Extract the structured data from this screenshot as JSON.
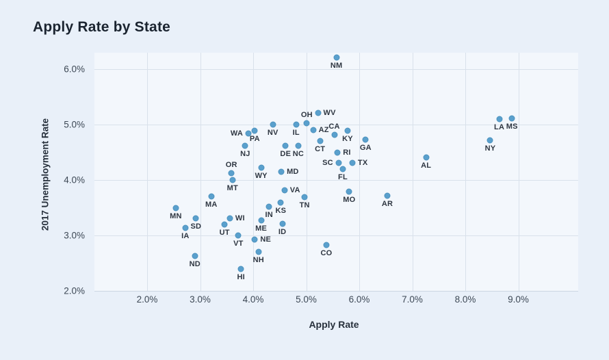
{
  "page": {
    "title": "Apply Rate by State"
  },
  "chart_data": {
    "type": "scatter",
    "title": "Apply Rate by State",
    "xlabel": "Apply Rate",
    "ylabel": "2017 Unemployment Rate",
    "xlim": [
      1.0,
      10.1
    ],
    "ylim": [
      2.0,
      6.3
    ],
    "grid": true,
    "legend": "none",
    "point_color": "#5aa0cd",
    "x_ticks": [
      {
        "value": 2.0,
        "label": "2.0%"
      },
      {
        "value": 3.0,
        "label": "3.0%"
      },
      {
        "value": 4.0,
        "label": "4.0%"
      },
      {
        "value": 5.0,
        "label": "5.0%"
      },
      {
        "value": 6.0,
        "label": "6.0%"
      },
      {
        "value": 7.0,
        "label": "7.0%"
      },
      {
        "value": 8.0,
        "label": "8.0%"
      },
      {
        "value": 9.0,
        "label": "9.0%"
      }
    ],
    "y_ticks": [
      {
        "value": 2.0,
        "label": "2.0%"
      },
      {
        "value": 3.0,
        "label": "3.0%"
      },
      {
        "value": 4.0,
        "label": "4.0%"
      },
      {
        "value": 5.0,
        "label": "5.0%"
      },
      {
        "value": 6.0,
        "label": "6.0%"
      }
    ],
    "points": [
      {
        "state": "NM",
        "x": 5.57,
        "y": 6.2,
        "label_pos": "below"
      },
      {
        "state": "WV",
        "x": 5.22,
        "y": 5.2,
        "label_pos": "right"
      },
      {
        "state": "OH",
        "x": 5.01,
        "y": 5.02,
        "label_pos": "above"
      },
      {
        "state": "IL",
        "x": 4.81,
        "y": 5.0,
        "label_pos": "below"
      },
      {
        "state": "NV",
        "x": 4.37,
        "y": 5.0,
        "label_pos": "below"
      },
      {
        "state": "PA",
        "x": 4.03,
        "y": 4.88,
        "label_pos": "below"
      },
      {
        "state": "WA",
        "x": 3.91,
        "y": 4.83,
        "label_pos": "left"
      },
      {
        "state": "AZ",
        "x": 5.13,
        "y": 4.9,
        "label_pos": "right"
      },
      {
        "state": "CA",
        "x": 5.53,
        "y": 4.81,
        "label_pos": "above"
      },
      {
        "state": "KY",
        "x": 5.78,
        "y": 4.88,
        "label_pos": "below"
      },
      {
        "state": "NJ",
        "x": 3.85,
        "y": 4.61,
        "label_pos": "below"
      },
      {
        "state": "DE",
        "x": 4.61,
        "y": 4.61,
        "label_pos": "below"
      },
      {
        "state": "NC",
        "x": 4.85,
        "y": 4.61,
        "label_pos": "below"
      },
      {
        "state": "CT",
        "x": 5.26,
        "y": 4.7,
        "label_pos": "below"
      },
      {
        "state": "GA",
        "x": 6.12,
        "y": 4.72,
        "label_pos": "below"
      },
      {
        "state": "RI",
        "x": 5.59,
        "y": 4.49,
        "label_pos": "right"
      },
      {
        "state": "SC",
        "x": 5.61,
        "y": 4.3,
        "label_pos": "left"
      },
      {
        "state": "TX",
        "x": 5.87,
        "y": 4.3,
        "label_pos": "right"
      },
      {
        "state": "FL",
        "x": 5.69,
        "y": 4.19,
        "label_pos": "below"
      },
      {
        "state": "AL",
        "x": 7.26,
        "y": 4.4,
        "label_pos": "below"
      },
      {
        "state": "OR",
        "x": 3.59,
        "y": 4.12,
        "label_pos": "above"
      },
      {
        "state": "MT",
        "x": 3.61,
        "y": 3.99,
        "label_pos": "below"
      },
      {
        "state": "WY",
        "x": 4.15,
        "y": 4.22,
        "label_pos": "below"
      },
      {
        "state": "MD",
        "x": 4.53,
        "y": 4.14,
        "label_pos": "right"
      },
      {
        "state": "VA",
        "x": 4.59,
        "y": 3.81,
        "label_pos": "right"
      },
      {
        "state": "TN",
        "x": 4.97,
        "y": 3.69,
        "label_pos": "below"
      },
      {
        "state": "KS",
        "x": 4.52,
        "y": 3.59,
        "label_pos": "below"
      },
      {
        "state": "IN",
        "x": 4.3,
        "y": 3.51,
        "label_pos": "below"
      },
      {
        "state": "MO",
        "x": 5.81,
        "y": 3.78,
        "label_pos": "below"
      },
      {
        "state": "AR",
        "x": 6.53,
        "y": 3.71,
        "label_pos": "below"
      },
      {
        "state": "MA",
        "x": 3.21,
        "y": 3.7,
        "label_pos": "below"
      },
      {
        "state": "MN",
        "x": 2.54,
        "y": 3.49,
        "label_pos": "below"
      },
      {
        "state": "SD",
        "x": 2.92,
        "y": 3.3,
        "label_pos": "below"
      },
      {
        "state": "IA",
        "x": 2.72,
        "y": 3.13,
        "label_pos": "below"
      },
      {
        "state": "WI",
        "x": 3.56,
        "y": 3.3,
        "label_pos": "right"
      },
      {
        "state": "UT",
        "x": 3.46,
        "y": 3.19,
        "label_pos": "below"
      },
      {
        "state": "ME",
        "x": 4.15,
        "y": 3.27,
        "label_pos": "below"
      },
      {
        "state": "ID",
        "x": 4.55,
        "y": 3.2,
        "label_pos": "below"
      },
      {
        "state": "VT",
        "x": 3.72,
        "y": 2.99,
        "label_pos": "below"
      },
      {
        "state": "NE",
        "x": 4.03,
        "y": 2.92,
        "label_pos": "right"
      },
      {
        "state": "NH",
        "x": 4.1,
        "y": 2.7,
        "label_pos": "below"
      },
      {
        "state": "ND",
        "x": 2.9,
        "y": 2.62,
        "label_pos": "below"
      },
      {
        "state": "HI",
        "x": 3.77,
        "y": 2.39,
        "label_pos": "below"
      },
      {
        "state": "CO",
        "x": 5.38,
        "y": 2.82,
        "label_pos": "below"
      },
      {
        "state": "LA",
        "x": 8.64,
        "y": 5.09,
        "label_pos": "below"
      },
      {
        "state": "MS",
        "x": 8.88,
        "y": 5.1,
        "label_pos": "below"
      },
      {
        "state": "NY",
        "x": 8.47,
        "y": 4.71,
        "label_pos": "below"
      }
    ]
  }
}
